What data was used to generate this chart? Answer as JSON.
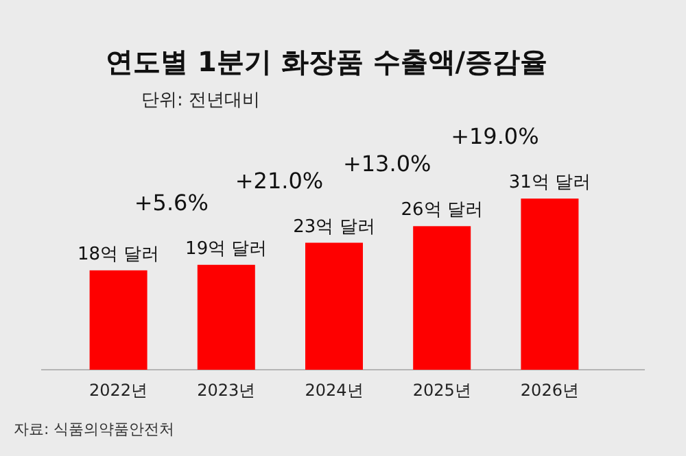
{
  "chart_data": {
    "type": "bar",
    "title": "연도별 1분기 화장품 수출액/증감율",
    "subtitle": "단위: 전년대비",
    "categories": [
      "2022년",
      "2023년",
      "2024년",
      "2025년",
      "2026년"
    ],
    "values": [
      18,
      19,
      23,
      26,
      31
    ],
    "value_labels": [
      "18억 달러",
      "19억 달러",
      "23억 달러",
      "26억 달러",
      "31억 달러"
    ],
    "color": "#fe0000",
    "annotations": [
      "+5.6%",
      "+21.0%",
      "+13.0%",
      "+19.0%",
      "자료: 식품의약품안전처"
    ]
  }
}
